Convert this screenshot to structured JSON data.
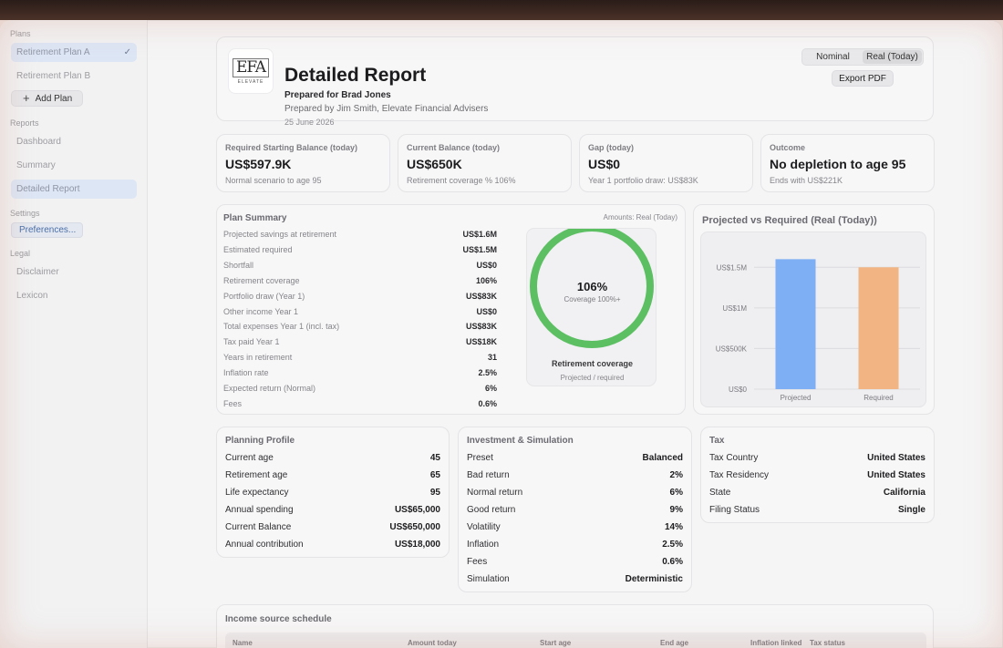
{
  "sidebar": {
    "plans_heading": "Plans",
    "plans": [
      {
        "label": "Retirement Plan A",
        "active": true,
        "check": "✓"
      },
      {
        "label": "Retirement Plan B",
        "active": false
      }
    ],
    "add_plan_label": "Add Plan",
    "add_plan_icon": "+",
    "reports_heading": "Reports",
    "reports": [
      {
        "label": "Dashboard",
        "active": false
      },
      {
        "label": "Summary",
        "active": false
      },
      {
        "label": "Detailed Report",
        "active": true
      }
    ],
    "settings_heading": "Settings",
    "preferences_label": "Preferences...",
    "legal_heading": "Legal",
    "legal": [
      {
        "label": "Disclaimer"
      },
      {
        "label": "Lexicon"
      }
    ]
  },
  "header": {
    "logo_mark": "EFA",
    "logo_brand": "ELEVATE",
    "title": "Detailed Report",
    "prepared_for": "Prepared for Brad Jones",
    "prepared_by": "Prepared by Jim Smith, Elevate Financial Advisers",
    "date": "25 June 2026",
    "mode_options": [
      "Nominal",
      "Real (Today)"
    ],
    "mode_selected": "Real (Today)",
    "export_label": "Export PDF"
  },
  "metrics": [
    {
      "label": "Required Starting Balance (today)",
      "value": "US$597.9K",
      "sub": "Normal scenario to age 95"
    },
    {
      "label": "Current Balance (today)",
      "value": "US$650K",
      "sub": "Retirement coverage % 106%"
    },
    {
      "label": "Gap (today)",
      "value": "US$0",
      "sub": "Year 1 portfolio draw: US$83K"
    },
    {
      "label": "Outcome",
      "value": "No depletion to age 95",
      "sub": "Ends with US$221K"
    }
  ],
  "plan_summary": {
    "title": "Plan Summary",
    "amounts_note": "Amounts: Real (Today)",
    "rows": [
      {
        "label": "Projected savings at retirement",
        "value": "US$1.6M"
      },
      {
        "label": "Estimated required",
        "value": "US$1.5M"
      },
      {
        "label": "Shortfall",
        "value": "US$0"
      },
      {
        "label": "Retirement coverage",
        "value": "106%"
      },
      {
        "label": "Portfolio draw (Year 1)",
        "value": "US$83K"
      },
      {
        "label": "Other income Year 1",
        "value": "US$0"
      },
      {
        "label": "Total expenses Year 1 (incl. tax)",
        "value": "US$83K"
      },
      {
        "label": "Tax paid Year 1",
        "value": "US$18K"
      },
      {
        "label": "Years in retirement",
        "value": "31"
      },
      {
        "label": "Inflation rate",
        "value": "2.5%"
      },
      {
        "label": "Expected return (Normal)",
        "value": "6%"
      },
      {
        "label": "Fees",
        "value": "0.6%"
      }
    ],
    "coverage": {
      "percent_label": "106%",
      "coverage_fraction": 1.0,
      "coverage_text": "Coverage 100%+",
      "label": "Retirement coverage",
      "sub": "Projected / required",
      "ring_color": "#5cc063"
    }
  },
  "projected_chart": {
    "title": "Projected vs Required (Real (Today))"
  },
  "chart_data": {
    "type": "bar",
    "categories": [
      "Projected",
      "Required"
    ],
    "values": [
      1600000,
      1500000
    ],
    "colors": [
      "#7eaef3",
      "#f2b483"
    ],
    "title": "Projected vs Required (Real (Today))",
    "xlabel": "",
    "ylabel": "",
    "ylim": [
      0,
      1750000
    ],
    "yticks": [
      0,
      500000,
      1000000,
      1500000
    ],
    "ytick_labels": [
      "US$0",
      "US$500K",
      "US$1M",
      "US$1.5M"
    ],
    "grid": true
  },
  "planning_profile": {
    "title": "Planning Profile",
    "rows": [
      {
        "label": "Current age",
        "value": "45"
      },
      {
        "label": "Retirement age",
        "value": "65"
      },
      {
        "label": "Life expectancy",
        "value": "95"
      },
      {
        "label": "Annual spending",
        "value": "US$65,000"
      },
      {
        "label": "Current Balance",
        "value": "US$650,000"
      },
      {
        "label": "Annual contribution",
        "value": "US$18,000"
      }
    ]
  },
  "investment": {
    "title": "Investment & Simulation",
    "rows": [
      {
        "label": "Preset",
        "value": "Balanced"
      },
      {
        "label": "Bad return",
        "value": "2%"
      },
      {
        "label": "Normal return",
        "value": "6%"
      },
      {
        "label": "Good return",
        "value": "9%"
      },
      {
        "label": "Volatility",
        "value": "14%"
      },
      {
        "label": "Inflation",
        "value": "2.5%"
      },
      {
        "label": "Fees",
        "value": "0.6%"
      },
      {
        "label": "Simulation",
        "value": "Deterministic"
      }
    ]
  },
  "tax": {
    "title": "Tax",
    "rows": [
      {
        "label": "Tax Country",
        "value": "United States"
      },
      {
        "label": "Tax Residency",
        "value": "United States"
      },
      {
        "label": "State",
        "value": "California"
      },
      {
        "label": "Filing Status",
        "value": "Single"
      }
    ]
  },
  "income_schedule": {
    "title": "Income source schedule",
    "columns": [
      "Name",
      "Amount today",
      "Start age",
      "End age",
      "Inflation linked",
      "Tax status"
    ]
  }
}
